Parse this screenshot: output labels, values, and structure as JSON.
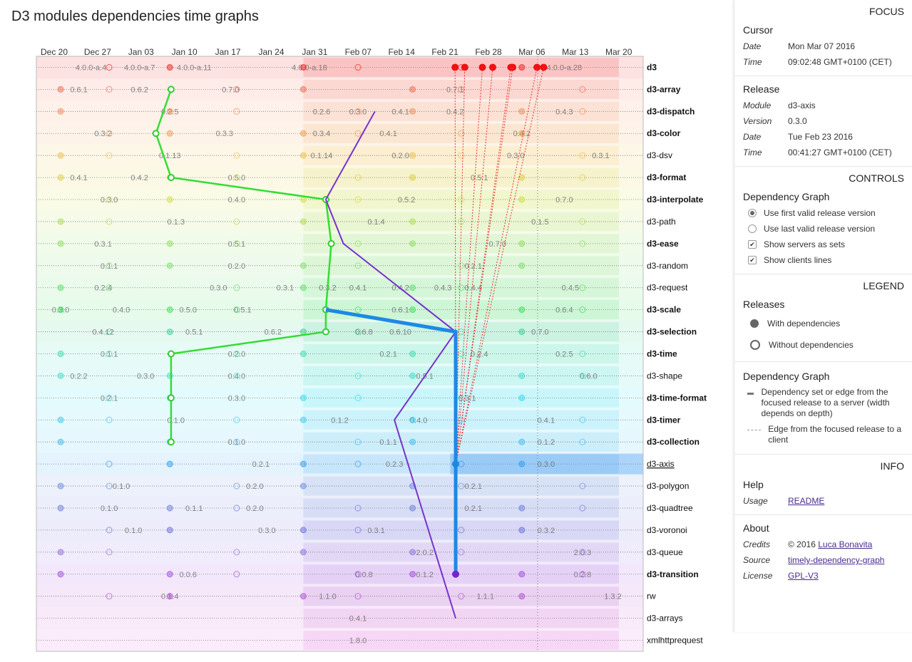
{
  "title": "D3 modules dependencies time graphs",
  "dates": [
    "Dec 20",
    "Dec 27",
    "Jan 03",
    "Jan 10",
    "Jan 17",
    "Jan 24",
    "Jan 31",
    "Feb 07",
    "Feb 14",
    "Feb 21",
    "Feb 28",
    "Mar 06",
    "Mar 13",
    "Mar 20"
  ],
  "modules": [
    {
      "name": "d3",
      "bold": true,
      "color": "#ee1111",
      "labels": [
        [
          "4.0.0-a.4",
          0.09
        ],
        [
          "4.0.0-a.7",
          0.17
        ],
        [
          "4.0.0-a.11",
          0.26
        ],
        [
          "4.0.0-a.18",
          0.45
        ],
        [
          "4.0.0-a.28",
          0.87
        ]
      ]
    },
    {
      "name": "d3-array",
      "bold": true,
      "color": "#ee6644",
      "labels": [
        [
          "0.6.1",
          0.07
        ],
        [
          "0.6.2",
          0.17
        ],
        [
          "0.7.0",
          0.32
        ],
        [
          "0.7.1",
          0.69
        ]
      ]
    },
    {
      "name": "d3-dispatch",
      "bold": true,
      "color": "#ee8855",
      "labels": [
        [
          "0.2.5",
          0.22
        ],
        [
          "0.2.6",
          0.47
        ],
        [
          "0.3.0",
          0.53
        ],
        [
          "0.4.1",
          0.6
        ],
        [
          "0.4.2",
          0.69
        ],
        [
          "0.4.3",
          0.87
        ]
      ]
    },
    {
      "name": "d3-color",
      "bold": true,
      "color": "#ee9944",
      "labels": [
        [
          "0.3.2",
          0.11
        ],
        [
          "0.3.3",
          0.31
        ],
        [
          "0.3.4",
          0.47
        ],
        [
          "0.4.1",
          0.58
        ],
        [
          "0.4.2",
          0.8
        ]
      ]
    },
    {
      "name": "d3-dsv",
      "bold": false,
      "color": "#eebb44",
      "labels": [
        [
          "0.1.13",
          0.22
        ],
        [
          "0.1.14",
          0.47
        ],
        [
          "0.2.0",
          0.6
        ],
        [
          "0.3.0",
          0.79
        ],
        [
          "0.3.1",
          0.93
        ]
      ]
    },
    {
      "name": "d3-format",
      "bold": true,
      "color": "#ddcc33",
      "labels": [
        [
          "0.4.1",
          0.07
        ],
        [
          "0.4.2",
          0.17
        ],
        [
          "0.5.0",
          0.33
        ],
        [
          "0.5.1",
          0.73
        ]
      ]
    },
    {
      "name": "d3-interpolate",
      "bold": true,
      "color": "#ccdd33",
      "labels": [
        [
          "0.3.0",
          0.12
        ],
        [
          "0.4.0",
          0.33
        ],
        [
          "0.5.2",
          0.61
        ],
        [
          "0.7.0",
          0.87
        ]
      ]
    },
    {
      "name": "d3-path",
      "bold": false,
      "color": "#aadd44",
      "labels": [
        [
          "0.1.3",
          0.23
        ],
        [
          "0.1.4",
          0.56
        ],
        [
          "0.1.5",
          0.83
        ]
      ]
    },
    {
      "name": "d3-ease",
      "bold": true,
      "color": "#88dd55",
      "labels": [
        [
          "0.3.1",
          0.11
        ],
        [
          "0.5.1",
          0.33
        ],
        [
          "0.7.0",
          0.76
        ]
      ]
    },
    {
      "name": "d3-random",
      "bold": false,
      "color": "#77dd66",
      "labels": [
        [
          "0.1.1",
          0.12
        ],
        [
          "0.2.0",
          0.33
        ],
        [
          "0.2.1",
          0.72
        ]
      ]
    },
    {
      "name": "d3-request",
      "bold": false,
      "color": "#55dd66",
      "labels": [
        [
          "0.2.4",
          0.11
        ],
        [
          "0.3.0",
          0.3
        ],
        [
          "0.3.1",
          0.41
        ],
        [
          "0.3.2",
          0.48
        ],
        [
          "0.4.1",
          0.53
        ],
        [
          "0.4.2",
          0.6
        ],
        [
          "0.4.3",
          0.67
        ],
        [
          "0.4.4",
          0.72
        ],
        [
          "0.4.5",
          0.88
        ]
      ]
    },
    {
      "name": "d3-scale",
      "bold": true,
      "color": "#33dd55",
      "labels": [
        [
          "0.3.0",
          0.04
        ],
        [
          "0.4.0",
          0.14
        ],
        [
          "0.5.0",
          0.25
        ],
        [
          "0.5.1",
          0.34
        ],
        [
          "0.6.1",
          0.6
        ],
        [
          "0.6.4",
          0.87
        ]
      ]
    },
    {
      "name": "d3-selection",
      "bold": true,
      "color": "#33cc88",
      "labels": [
        [
          "0.4.12",
          0.11
        ],
        [
          "0.5.1",
          0.26
        ],
        [
          "0.6.2",
          0.39
        ],
        [
          "0.6.8",
          0.54
        ],
        [
          "0.6.10",
          0.6
        ],
        [
          "0.7.0",
          0.83
        ]
      ]
    },
    {
      "name": "d3-time",
      "bold": true,
      "color": "#33ddaa",
      "labels": [
        [
          "0.1.1",
          0.12
        ],
        [
          "0.2.0",
          0.33
        ],
        [
          "0.2.1",
          0.58
        ],
        [
          "0.2.4",
          0.73
        ],
        [
          "0.2.5",
          0.87
        ]
      ]
    },
    {
      "name": "d3-shape",
      "bold": false,
      "color": "#33ddcc",
      "labels": [
        [
          "0.2.2",
          0.07
        ],
        [
          "0.3.0",
          0.18
        ],
        [
          "0.4.0",
          0.33
        ],
        [
          "0.5.1",
          0.64
        ],
        [
          "0.6.0",
          0.91
        ]
      ]
    },
    {
      "name": "d3-time-format",
      "bold": true,
      "color": "#22ddee",
      "labels": [
        [
          "0.2.1",
          0.12
        ],
        [
          "0.3.0",
          0.33
        ],
        [
          "0.3.1",
          0.71
        ]
      ]
    },
    {
      "name": "d3-timer",
      "bold": true,
      "color": "#33ccee",
      "labels": [
        [
          "0.1.0",
          0.23
        ],
        [
          "0.1.2",
          0.5
        ],
        [
          "0.4.0",
          0.63
        ],
        [
          "0.4.1",
          0.84
        ]
      ]
    },
    {
      "name": "d3-collection",
      "bold": true,
      "color": "#33bbee",
      "labels": [
        [
          "0.1.0",
          0.33
        ],
        [
          "0.1.1",
          0.58
        ],
        [
          "0.1.2",
          0.84
        ]
      ]
    },
    {
      "name": "d3-axis",
      "bold": false,
      "color": "#2299ee",
      "labels": [
        [
          "0.2.1",
          0.37
        ],
        [
          "0.2.3",
          0.59
        ],
        [
          "0.3.0",
          0.84
        ]
      ]
    },
    {
      "name": "d3-polygon",
      "bold": false,
      "color": "#6688dd",
      "labels": [
        [
          "0.1.0",
          0.14
        ],
        [
          "0.2.0",
          0.36
        ],
        [
          "0.2.1",
          0.72
        ]
      ]
    },
    {
      "name": "d3-quadtree",
      "bold": false,
      "color": "#6677dd",
      "labels": [
        [
          "0.1.0",
          0.12
        ],
        [
          "0.1.1",
          0.26
        ],
        [
          "0.2.0",
          0.36
        ],
        [
          "0.2.1",
          0.72
        ]
      ]
    },
    {
      "name": "d3-voronoi",
      "bold": false,
      "color": "#6666dd",
      "labels": [
        [
          "0.1.0",
          0.16
        ],
        [
          "0.3.0",
          0.38
        ],
        [
          "0.3.1",
          0.56
        ],
        [
          "0.3.2",
          0.84
        ]
      ]
    },
    {
      "name": "d3-queue",
      "bold": false,
      "color": "#8866dd",
      "labels": [
        [
          "2.0.2",
          0.64
        ],
        [
          "2.0.3",
          0.9
        ]
      ]
    },
    {
      "name": "d3-transition",
      "bold": true,
      "color": "#9944dd",
      "labels": [
        [
          "0.0.6",
          0.25
        ],
        [
          "0.0.8",
          0.54
        ],
        [
          "0.1.2",
          0.64
        ],
        [
          "0.2.8",
          0.9
        ]
      ]
    },
    {
      "name": "rw",
      "bold": false,
      "color": "#aa44cc",
      "labels": [
        [
          "0.1.4",
          0.22
        ],
        [
          "1.1.0",
          0.48
        ],
        [
          "1.1.1",
          0.74
        ],
        [
          "1.3.2",
          0.95
        ]
      ]
    },
    {
      "name": "d3-arrays",
      "bold": false,
      "color": "#cc55cc",
      "labels": [
        [
          "0.4.1",
          0.53
        ]
      ]
    },
    {
      "name": "xmlhttprequest",
      "bold": false,
      "color": "#dd66dd",
      "labels": [
        [
          "1.8.0",
          0.53
        ]
      ]
    }
  ],
  "focus": {
    "heading": "FOCUS",
    "cursor_title": "Cursor",
    "cursor_date_label": "Date",
    "cursor_date": "Mon Mar 07 2016",
    "cursor_time_label": "Time",
    "cursor_time": "09:02:48 GMT+0100 (CET)",
    "release_title": "Release",
    "module_label": "Module",
    "module": "d3-axis",
    "version_label": "Version",
    "version": "0.3.0",
    "release_date_label": "Date",
    "release_date": "Tue Feb 23 2016",
    "release_time_label": "Time",
    "release_time": "00:41:27 GMT+0100 (CET)"
  },
  "controls": {
    "heading": "CONTROLS",
    "title": "Dependency Graph",
    "opt_first": "Use first valid release version",
    "opt_last": "Use last valid release version",
    "opt_servers": "Show servers as sets",
    "opt_clients": "Show clients lines"
  },
  "legend": {
    "heading": "LEGEND",
    "releases_title": "Releases",
    "with_deps": "With dependencies",
    "without_deps": "Without dependencies",
    "graph_title": "Dependency Graph",
    "solid_desc": "Dependency set or edge from the focused release to a server (width depends on depth)",
    "dashed_desc": "Edge from the focused release to a client"
  },
  "info": {
    "heading": "INFO",
    "help_title": "Help",
    "usage_label": "Usage",
    "usage_link": "README",
    "about_title": "About",
    "credits_label": "Credits",
    "credits_prefix": "© 2016 ",
    "credits_link": "Luca Bonavita",
    "source_label": "Source",
    "source_link": "timely-dependency-graph",
    "license_label": "License",
    "license_link": "GPL-V3"
  }
}
